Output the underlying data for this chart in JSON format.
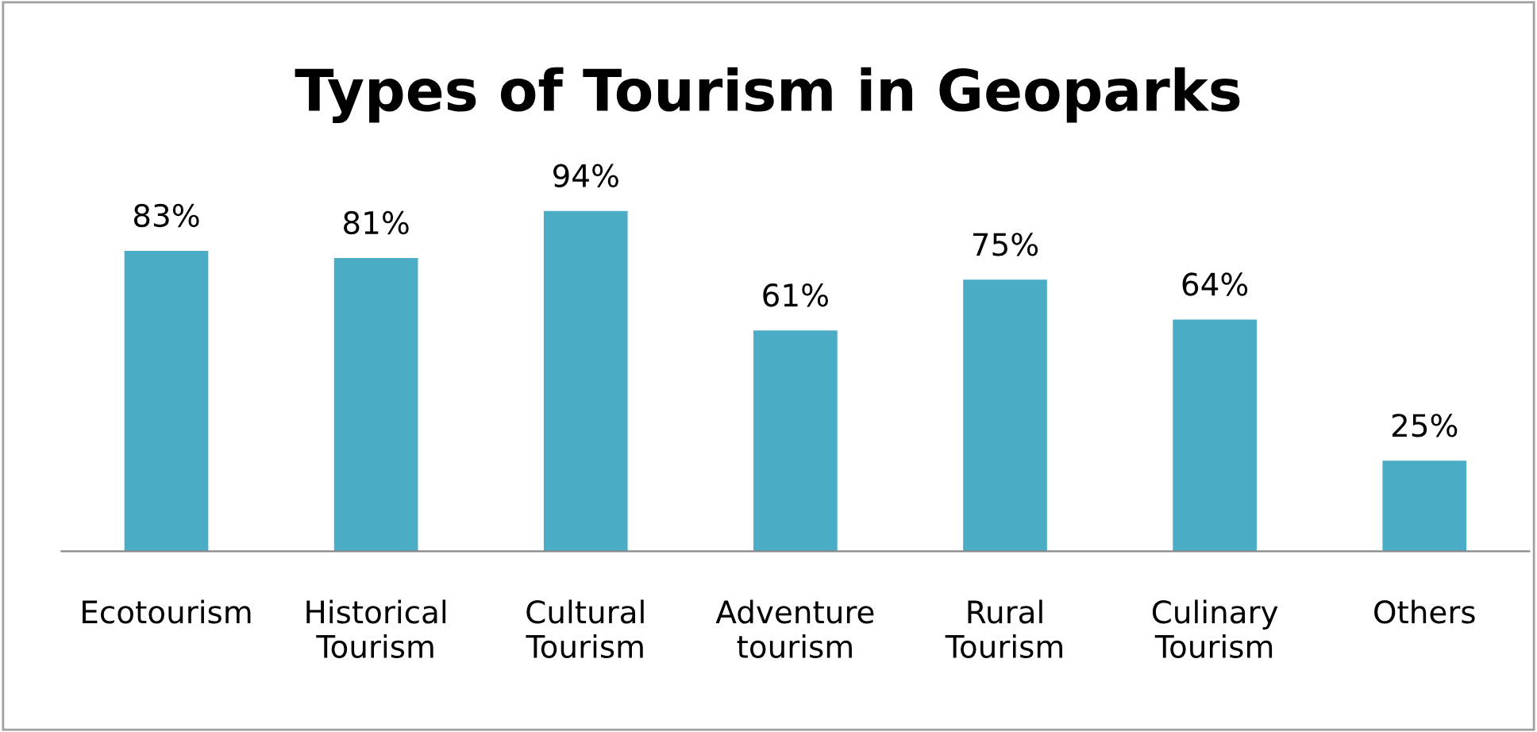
{
  "chart_data": {
    "type": "bar",
    "title": "Types of Tourism in Geoparks",
    "categories": [
      "Ecotourism",
      "Historical\nTourism",
      "Cultural\nTourism",
      "Adventure\ntourism",
      "Rural\nTourism",
      "Culinary\nTourism",
      "Others"
    ],
    "values": [
      83,
      81,
      94,
      61,
      75,
      64,
      25
    ],
    "value_labels": [
      "83%",
      "81%",
      "94%",
      "61%",
      "75%",
      "64%",
      "25%"
    ],
    "color": "#4bacc6",
    "grid": false,
    "legend": false
  }
}
